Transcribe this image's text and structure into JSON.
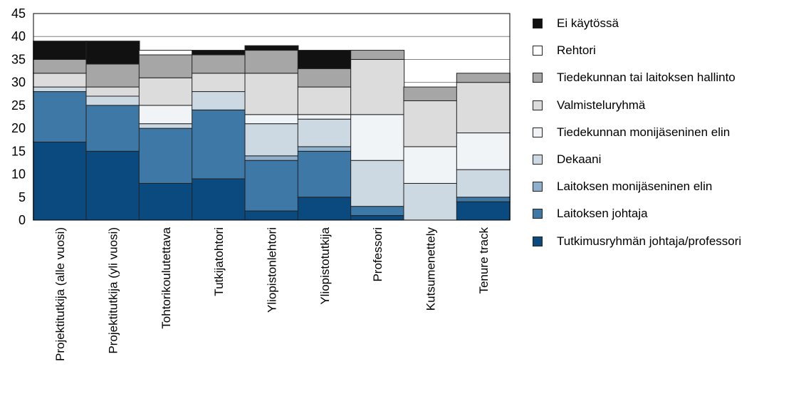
{
  "chart_data": {
    "type": "bar",
    "stacked": true,
    "title": "",
    "xlabel": "",
    "ylabel": "",
    "ylim": [
      0,
      45
    ],
    "yticks": [
      0,
      5,
      10,
      15,
      20,
      25,
      30,
      35,
      40,
      45
    ],
    "grid": true,
    "legend_position": "right",
    "categories": [
      "Projektitutkija (alle vuosi)",
      "Projektitutkija (yli vuosi)",
      "Tohtorikoulutettava",
      "Tutkijatohtori",
      "Yliopistonlehtori",
      "Yliopistotutkija",
      "Professori",
      "Kutsumenettely",
      "Tenure track"
    ],
    "series": [
      {
        "name": "Tutkimusryhmän johtaja/professori",
        "color": "#0a4a7f",
        "values": [
          17,
          15,
          8,
          9,
          2,
          5,
          1,
          0,
          4
        ]
      },
      {
        "name": "Laitoksen johtaja",
        "color": "#3d78a6",
        "values": [
          11,
          10,
          12,
          15,
          11,
          10,
          2,
          0,
          1
        ]
      },
      {
        "name": "Laitoksen monijäseninen elin",
        "color": "#8fb0cc",
        "values": [
          0,
          0,
          0,
          0,
          1,
          1,
          0,
          0,
          0
        ]
      },
      {
        "name": "Dekaani",
        "color": "#ccd8e2",
        "values": [
          1,
          2,
          1,
          4,
          7,
          6,
          10,
          8,
          6
        ]
      },
      {
        "name": "Tiedekunnan monijäseninen elin",
        "color": "#f1f4f7",
        "values": [
          0,
          0,
          4,
          0,
          2,
          1,
          10,
          8,
          8
        ]
      },
      {
        "name": "Valmisteluryhmä",
        "color": "#dcdcdc",
        "values": [
          3,
          2,
          6,
          4,
          9,
          6,
          12,
          10,
          11
        ]
      },
      {
        "name": "Tiedekunnan tai laitoksen hallinto",
        "color": "#a6a6a6",
        "values": [
          3,
          5,
          5,
          4,
          5,
          4,
          2,
          3,
          2
        ]
      },
      {
        "name": "Rehtori",
        "color": "#ffffff",
        "values": [
          0,
          0,
          1,
          0,
          0,
          0,
          0,
          0,
          0
        ]
      },
      {
        "name": "Ei käytössä",
        "color": "#111111",
        "values": [
          4,
          5,
          0,
          1,
          1,
          4,
          0,
          0,
          0
        ]
      }
    ]
  }
}
